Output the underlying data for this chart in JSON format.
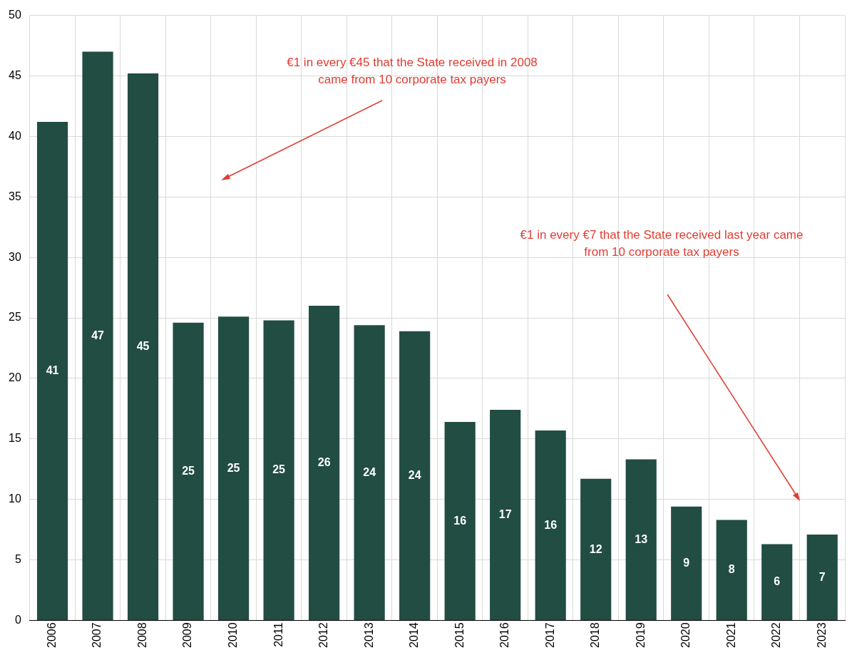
{
  "chart_data": {
    "type": "bar",
    "categories": [
      "2006",
      "2007",
      "2008",
      "2009",
      "2010",
      "2011",
      "2012",
      "2013",
      "2014",
      "2015",
      "2016",
      "2017",
      "2018",
      "2019",
      "2020",
      "2021",
      "2022",
      "2023"
    ],
    "values": [
      41.2,
      47.0,
      45.2,
      24.6,
      25.1,
      24.8,
      26.0,
      24.4,
      23.9,
      16.4,
      17.4,
      15.7,
      11.7,
      13.3,
      9.4,
      8.3,
      6.3,
      7.1
    ],
    "value_labels": [
      "41",
      "47",
      "45",
      "25",
      "25",
      "25",
      "26",
      "24",
      "24",
      "16",
      "17",
      "16",
      "12",
      "13",
      "9",
      "8",
      "6",
      "7"
    ],
    "color": "#214d43",
    "ylim": [
      0,
      50
    ],
    "yticks": [
      0,
      5,
      10,
      15,
      20,
      25,
      30,
      35,
      40,
      45,
      50
    ],
    "grid": true,
    "annotations": [
      "€1 in every €45 that the State received in 2008\ncame from 10 corporate tax payers",
      "€1 in every €7 that the State received last year came\nfrom 10 corporate tax payers"
    ]
  }
}
